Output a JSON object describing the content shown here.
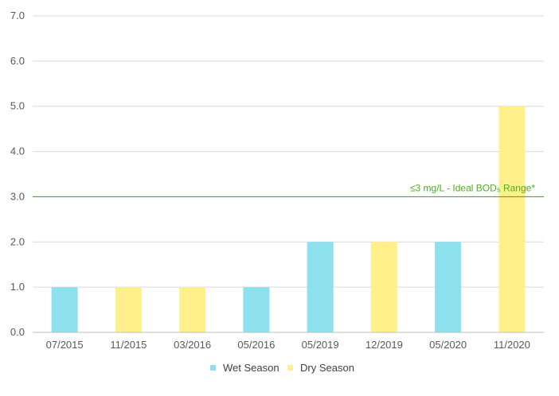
{
  "chart_data": {
    "type": "bar",
    "categories": [
      "07/2015",
      "11/2015",
      "03/2016",
      "05/2016",
      "05/2019",
      "12/2019",
      "05/2020",
      "11/2020"
    ],
    "values": [
      1,
      1,
      1,
      1,
      2,
      2,
      2,
      5
    ],
    "season": [
      "Wet Season",
      "Dry Season",
      "Dry Season",
      "Wet Season",
      "Wet Season",
      "Dry Season",
      "Wet Season",
      "Dry Season"
    ],
    "series": [
      {
        "name": "Wet Season",
        "color": "#8CE1EC"
      },
      {
        "name": "Dry Season",
        "color": "#FFF08C"
      }
    ],
    "ylim": [
      0,
      7
    ],
    "yticks": [
      "0.0",
      "1.0",
      "2.0",
      "3.0",
      "4.0",
      "5.0",
      "6.0",
      "7.0"
    ],
    "reference_line": {
      "value": 3,
      "label": "≤3 mg/L - Ideal BOD₅ Range*",
      "color": "#4CAF1A"
    },
    "grid": true,
    "legend_position": "bottom"
  }
}
